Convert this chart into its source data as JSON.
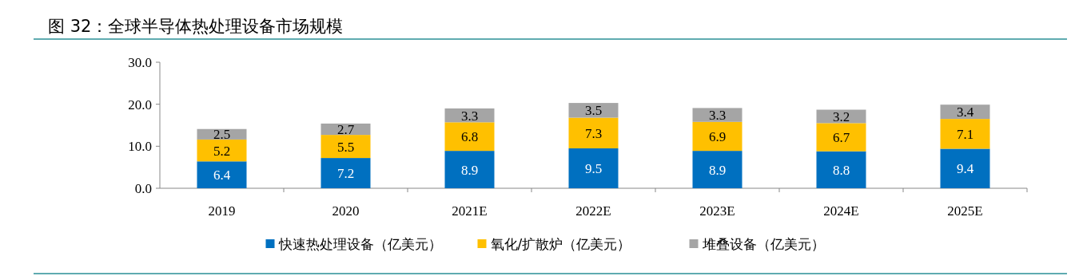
{
  "chart_data": {
    "type": "bar",
    "title": "图 32：全球半导体热处理设备市场规模",
    "categories": [
      "2019",
      "2020",
      "2021E",
      "2022E",
      "2023E",
      "2024E",
      "2025E"
    ],
    "stacked": true,
    "data_labels": true,
    "legend": "bottom",
    "ylim": [
      0,
      30
    ],
    "yticks": [
      {
        "value": 0,
        "label": "0.0"
      },
      {
        "value": 10,
        "label": "10.0"
      },
      {
        "value": 20,
        "label": "20.0"
      },
      {
        "value": 30,
        "label": "30.0"
      }
    ],
    "series": [
      {
        "name": "快速热处理设备（亿美元）",
        "color": "#0070c0",
        "values": [
          6.4,
          7.2,
          8.9,
          9.5,
          8.9,
          8.8,
          9.4
        ]
      },
      {
        "name": "氧化/扩散炉（亿美元）",
        "color": "#ffc000",
        "values": [
          5.2,
          5.5,
          6.8,
          7.3,
          6.9,
          6.7,
          7.1
        ]
      },
      {
        "name": "堆叠设备（亿美元）",
        "color": "#a5a5a5",
        "values": [
          2.5,
          2.7,
          3.3,
          3.5,
          3.3,
          3.2,
          3.4
        ]
      }
    ]
  }
}
